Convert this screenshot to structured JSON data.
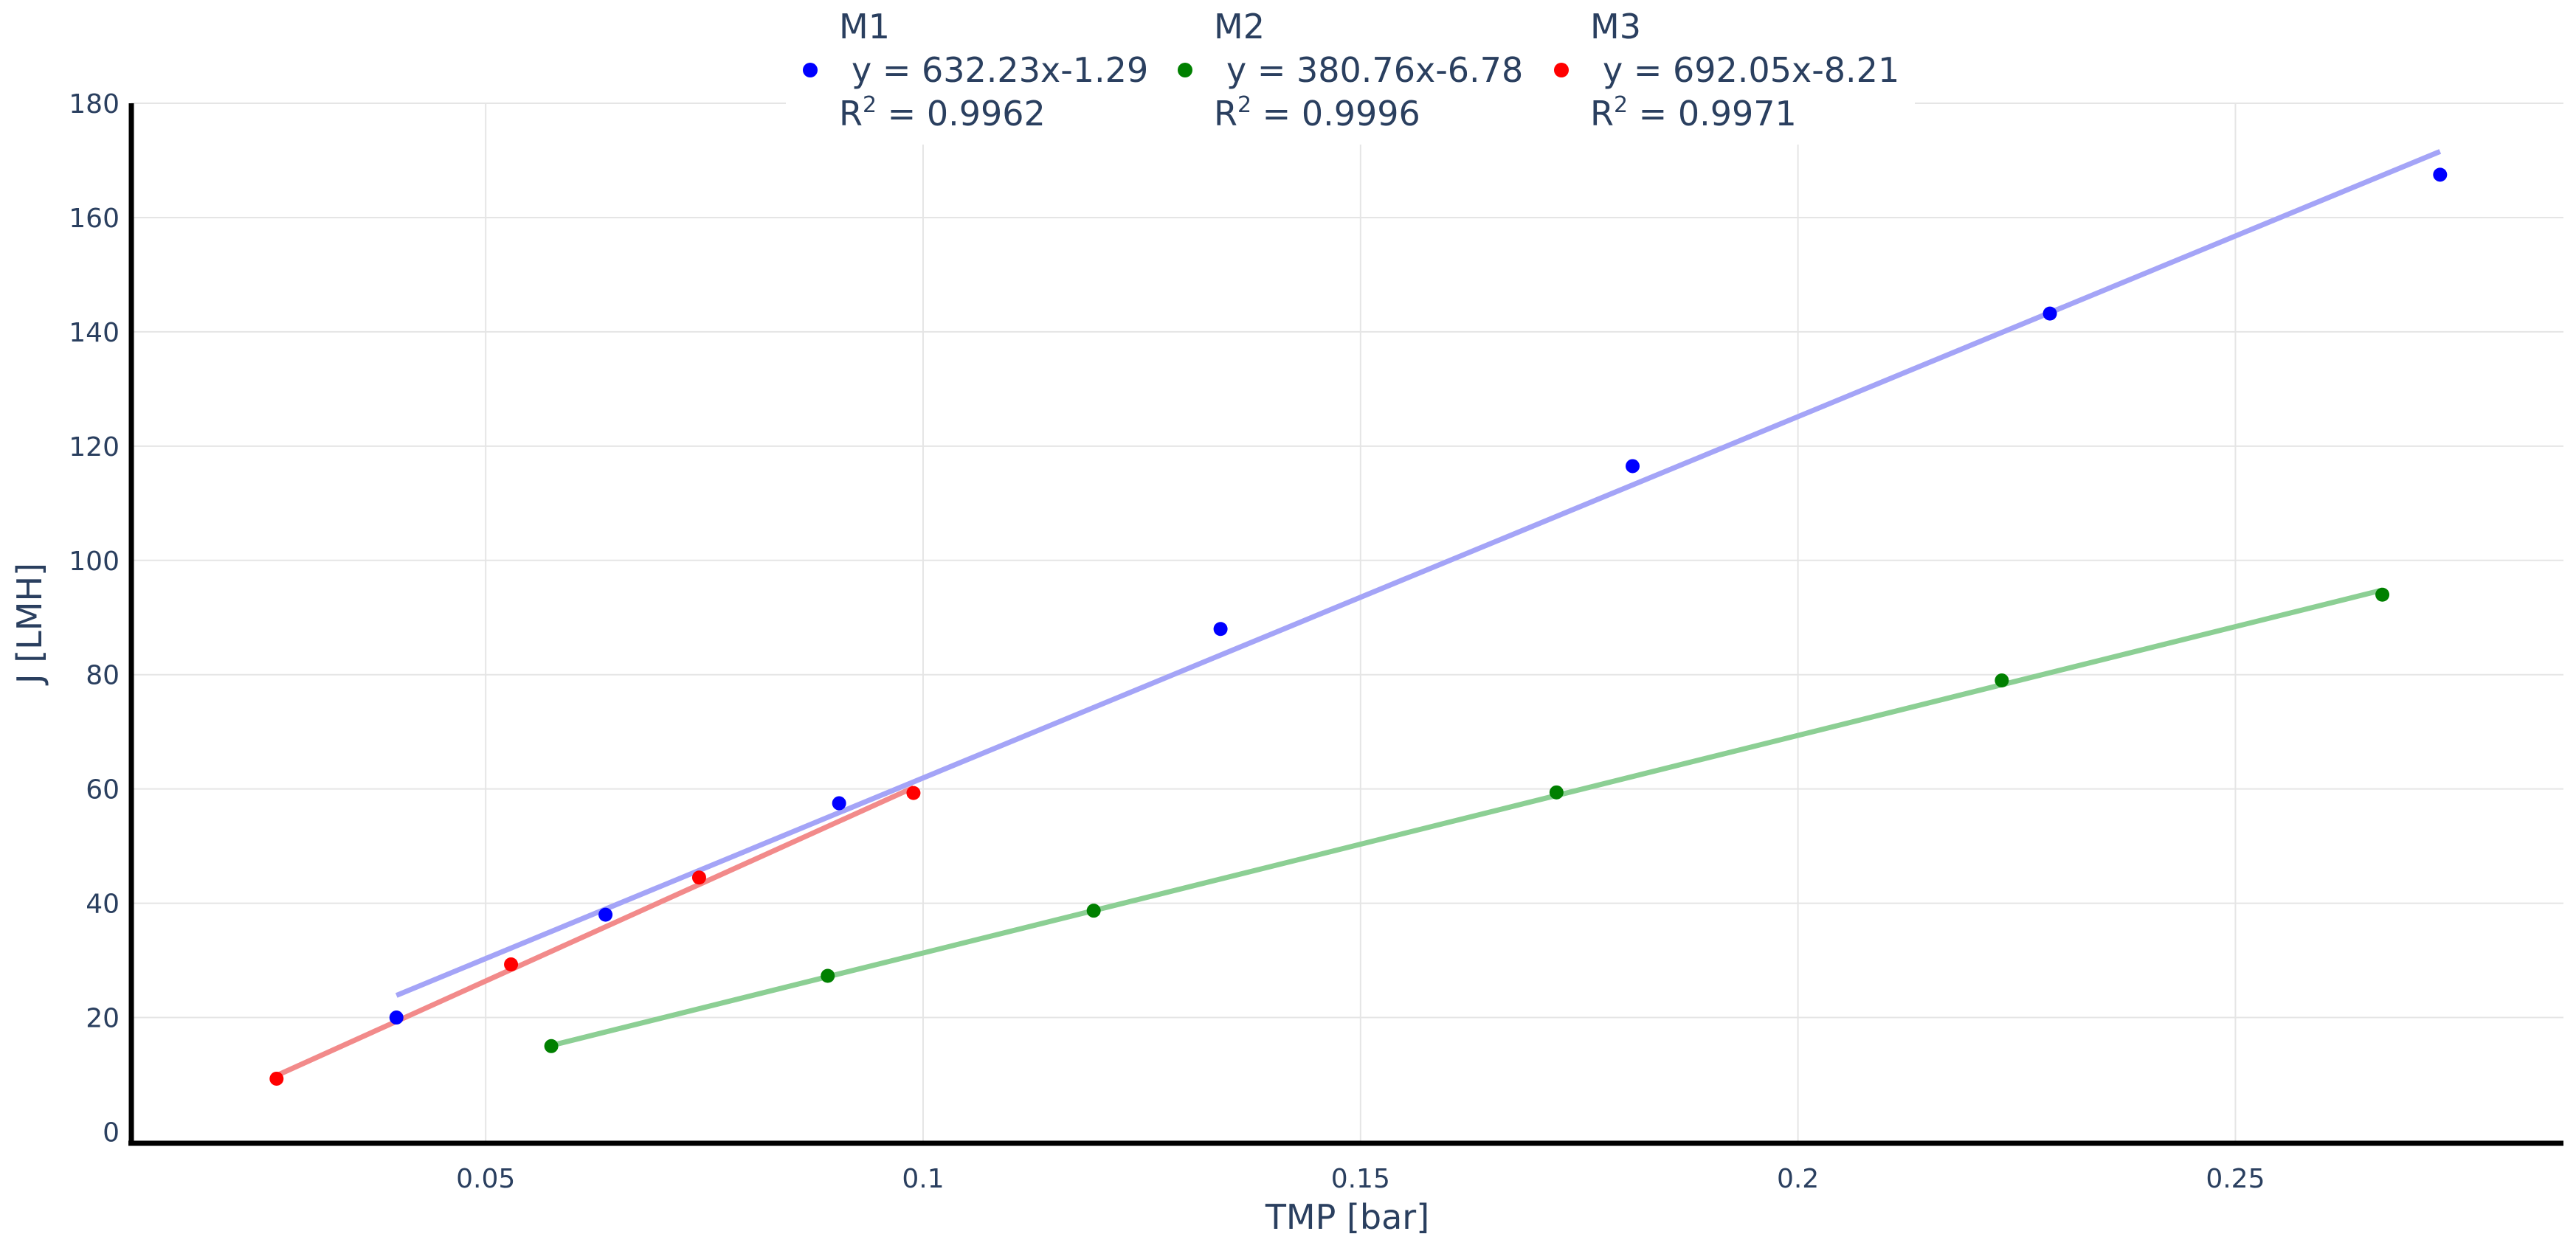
{
  "chart_data": {
    "type": "scatter",
    "xlabel": "TMP [bar]",
    "ylabel": "J [LMH]",
    "xlim": [
      0.0095,
      0.2875
    ],
    "ylim": [
      -2,
      180
    ],
    "x_ticks": [
      0.05,
      0.1,
      0.15,
      0.2,
      0.25
    ],
    "x_tick_labels": [
      "0.05",
      "0.1",
      "0.15",
      "0.2",
      "0.25"
    ],
    "y_ticks": [
      0,
      20,
      40,
      60,
      80,
      100,
      120,
      140,
      160,
      180
    ],
    "y_tick_labels": [
      "0",
      "20",
      "40",
      "60",
      "80",
      "100",
      "120",
      "140",
      "160",
      "180"
    ],
    "grid": true,
    "legend_position": "top-center",
    "series": [
      {
        "name": "M1",
        "equation": "y = 632.23x-1.29",
        "r2_prefix": "R",
        "r2_exp": "2",
        "r2_value": " = 0.9962",
        "marker_color": "#0000ff",
        "line_color": "#a4a4f7",
        "x": [
          0.0398,
          0.0637,
          0.0904,
          0.134,
          0.1811,
          0.2288,
          0.2734
        ],
        "y": [
          20.0,
          38.0,
          57.5,
          88.0,
          116.5,
          143.2,
          167.5
        ],
        "fit": {
          "slope": 632.23,
          "intercept": -1.29,
          "x_range": [
            0.0398,
            0.2734
          ]
        }
      },
      {
        "name": "M2",
        "equation": "y = 380.76x-6.78",
        "r2_prefix": "R",
        "r2_exp": "2",
        "r2_value": " = 0.9996",
        "marker_color": "#008000",
        "line_color": "#8ccf94",
        "x": [
          0.0575,
          0.0891,
          0.1195,
          0.1724,
          0.2233,
          0.2668
        ],
        "y": [
          15.0,
          27.3,
          38.7,
          59.4,
          79.0,
          94.0
        ],
        "fit": {
          "slope": 380.76,
          "intercept": -6.78,
          "x_range": [
            0.0575,
            0.2668
          ]
        }
      },
      {
        "name": "M3",
        "equation": "y = 692.05x-8.21",
        "r2_prefix": "R",
        "r2_exp": "2",
        "r2_value": " = 0.9971",
        "marker_color": "#ff0000",
        "line_color": "#f28a8a",
        "x": [
          0.0261,
          0.0529,
          0.0744,
          0.0989
        ],
        "y": [
          9.3,
          29.3,
          44.5,
          59.3
        ],
        "fit": {
          "slope": 692.05,
          "intercept": -8.21,
          "x_range": [
            0.0261,
            0.0989
          ]
        }
      }
    ]
  }
}
